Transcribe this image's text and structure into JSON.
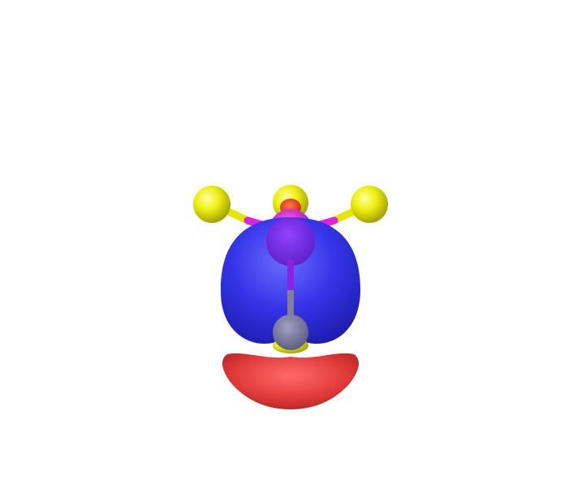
{
  "viewer": {
    "background_color": "#ffffff"
  },
  "molecule": {
    "atoms": [
      {
        "element": "S",
        "role": "terminal-left",
        "color": "#e6e600"
      },
      {
        "element": "S",
        "role": "terminal-center",
        "color": "#e6e600"
      },
      {
        "element": "S",
        "role": "terminal-right",
        "color": "#e6e600"
      },
      {
        "element": "P",
        "role": "central",
        "color": "#cc22cc"
      },
      {
        "element": "C",
        "role": "bridge",
        "color": "#7a7a8c"
      },
      {
        "element": "S",
        "role": "terminal-bottom",
        "color": "#e6e600"
      }
    ],
    "bond_colors": {
      "s": "#e6e600",
      "p": "#e020e0",
      "c": "#808080"
    }
  },
  "orbital": {
    "positive_lobe_color": "#2a2ae6",
    "negative_lobe_color": "#e03a3a"
  }
}
